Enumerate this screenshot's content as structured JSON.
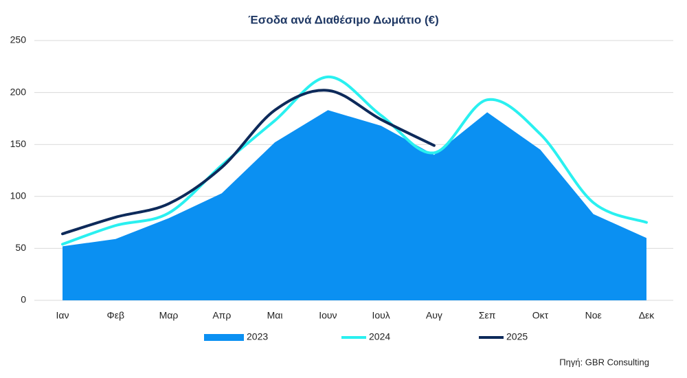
{
  "chart_data": {
    "type": "line",
    "title": "Έσοδα ανά Διαθέσιμο Δωμάτιο (€)",
    "categories": [
      "Ιαν",
      "Φεβ",
      "Μαρ",
      "Απρ",
      "Μαι",
      "Ιουν",
      "Ιουλ",
      "Αυγ",
      "Σεπ",
      "Οκτ",
      "Νοε",
      "Δεκ"
    ],
    "series": [
      {
        "name": "2023",
        "color": "#0b90f2",
        "fill": true,
        "smooth": false,
        "values": [
          52,
          59,
          79,
          103,
          152,
          183,
          168,
          140,
          181,
          145,
          83,
          60
        ]
      },
      {
        "name": "2024",
        "color": "#2af0f0",
        "fill": false,
        "smooth": true,
        "values": [
          54,
          72,
          84,
          130,
          173,
          215,
          178,
          142,
          193,
          160,
          94,
          75
        ]
      },
      {
        "name": "2025",
        "color": "#0d2a5a",
        "fill": false,
        "smooth": true,
        "values": [
          64,
          80,
          93,
          128,
          183,
          202,
          174,
          149,
          null,
          null,
          null,
          null
        ]
      }
    ],
    "ylim": [
      0,
      250
    ],
    "yticks": [
      0,
      50,
      100,
      150,
      200,
      250
    ],
    "grid": true,
    "legend": "bottom",
    "source": "Πηγή: GBR Consulting"
  }
}
